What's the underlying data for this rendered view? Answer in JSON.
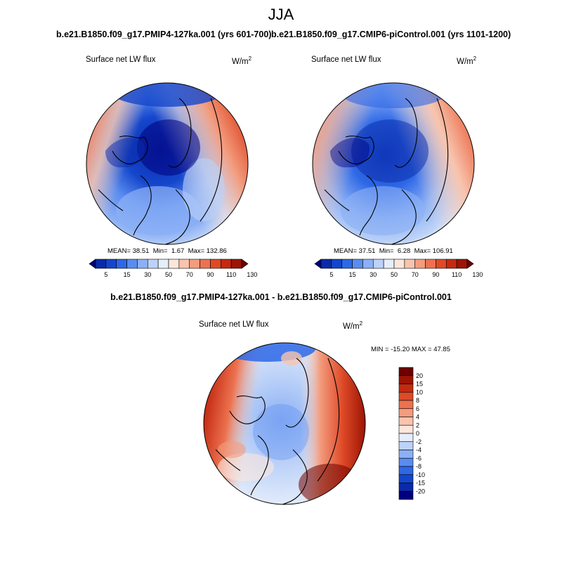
{
  "season": "JJA",
  "left_panel": {
    "case_title": "b.e21.B1850.f09_g17.PMIP4-127ka.001 (yrs 601-700)",
    "variable": "Surface net LW flux",
    "units_base": "W/m",
    "units_exp": "2",
    "stats": {
      "mean_label": "MEAN=",
      "mean": "38.51",
      "min_label": "Min=",
      "min": "1.67",
      "max_label": "Max=",
      "max": "132.86"
    }
  },
  "right_panel": {
    "case_title": "b.e21.B1850.f09_g17.CMIP6-piControl.001 (yrs 1101-1200)",
    "variable": "Surface net LW flux",
    "units_base": "W/m",
    "units_exp": "2",
    "stats": {
      "mean_label": "MEAN=",
      "mean": "37.51",
      "min_label": "Min=",
      "min": "6.28",
      "max_label": "Max=",
      "max": "106.91"
    }
  },
  "diff_panel": {
    "title": "b.e21.B1850.f09_g17.PMIP4-127ka.001 - b.e21.B1850.f09_g17.CMIP6-piControl.001",
    "variable": "Surface net LW flux",
    "units_base": "W/m",
    "units_exp": "2",
    "minmax": "MIN = -15.20 MAX =  47.85"
  },
  "abs_colorbar": {
    "labels": [
      "5",
      "15",
      "30",
      "50",
      "70",
      "90",
      "110",
      "130"
    ],
    "colors": [
      "#00007f",
      "#0a2aa8",
      "#1446cc",
      "#2e68e6",
      "#5a8cf0",
      "#8cb0f5",
      "#bcd2f8",
      "#e6eefb",
      "#fbe6dc",
      "#f8c4ae",
      "#f39c7e",
      "#ec7250",
      "#de4a28",
      "#c42a10",
      "#9c1404",
      "#6e0000"
    ]
  },
  "diff_colorbar": {
    "labels": [
      "20",
      "15",
      "10",
      "8",
      "6",
      "4",
      "2",
      "0",
      "-2",
      "-4",
      "-6",
      "-8",
      "-10",
      "-15",
      "-20"
    ],
    "colors": [
      "#6e0000",
      "#9c1404",
      "#c42a10",
      "#de4a28",
      "#ec7250",
      "#f39c7e",
      "#f8c4ae",
      "#fbe6dc",
      "#e6eefb",
      "#bcd2f8",
      "#8cb0f5",
      "#5a8cf0",
      "#2e68e6",
      "#1446cc",
      "#0a2aa8",
      "#00007f"
    ]
  }
}
